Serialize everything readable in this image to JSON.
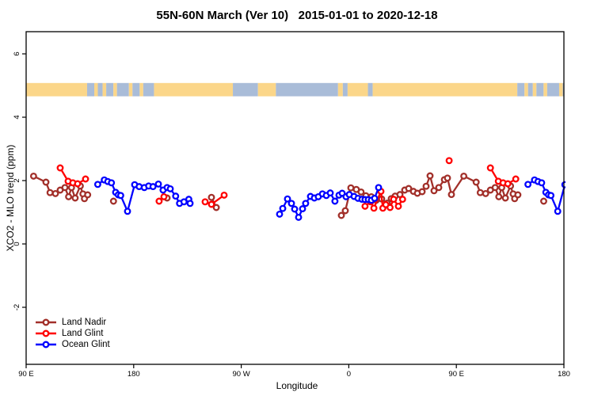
{
  "chart_data": {
    "type": "line",
    "title": "55N-60N March (Ver 10)   2015-01-01 to 2020-12-18",
    "xlabel": "Longitude",
    "ylabel": "XCO2 - MLO trend (ppm)",
    "background_color": "#FFFFFF",
    "axis_color": "#000000",
    "x_axis": {
      "range": [
        90,
        540
      ],
      "ticks": [
        90,
        180,
        270,
        360,
        450,
        540
      ],
      "tick_labels": [
        "90 E",
        "180",
        "90 W",
        "0",
        "90 E",
        "180"
      ],
      "note": "longitude axis wraps eastward: 90E,180,90W,0,90E,180"
    },
    "y_axis": {
      "range": [
        -2.8,
        6.7
      ],
      "ticks": [
        -2,
        0,
        2,
        4,
        6
      ],
      "tick_labels": [
        "-2",
        "0",
        "2",
        "4",
        "6"
      ]
    },
    "grid": false,
    "repeat_period_degrees": 360,
    "map_band": {
      "value_top": 5.08,
      "value_bottom": 4.66,
      "land_color": "#FBD689",
      "ocean_color": "#A9BCD8",
      "segments": [
        {
          "from": 90,
          "to": 141,
          "type": "land"
        },
        {
          "from": 141,
          "to": 147,
          "type": "ocean"
        },
        {
          "from": 147,
          "to": 150,
          "type": "land"
        },
        {
          "from": 150,
          "to": 154,
          "type": "ocean"
        },
        {
          "from": 154,
          "to": 157,
          "type": "land"
        },
        {
          "from": 157,
          "to": 163,
          "type": "ocean"
        },
        {
          "from": 163,
          "to": 166,
          "type": "land"
        },
        {
          "from": 166,
          "to": 176,
          "type": "ocean"
        },
        {
          "from": 176,
          "to": 179,
          "type": "land"
        },
        {
          "from": 179,
          "to": 185,
          "type": "ocean"
        },
        {
          "from": 185,
          "to": 188,
          "type": "land"
        },
        {
          "from": 188,
          "to": 197,
          "type": "ocean"
        },
        {
          "from": 197,
          "to": 263,
          "type": "land"
        },
        {
          "from": 263,
          "to": 284,
          "type": "ocean"
        },
        {
          "from": 284,
          "to": 299,
          "type": "land"
        },
        {
          "from": 299,
          "to": 351,
          "type": "ocean"
        },
        {
          "from": 351,
          "to": 355,
          "type": "land"
        },
        {
          "from": 355,
          "to": 359,
          "type": "ocean"
        },
        {
          "from": 359,
          "to": 376,
          "type": "land"
        },
        {
          "from": 376,
          "to": 380,
          "type": "ocean"
        },
        {
          "from": 380,
          "to": 501,
          "type": "land"
        },
        {
          "from": 501,
          "to": 507,
          "type": "ocean"
        },
        {
          "from": 507,
          "to": 510,
          "type": "land"
        },
        {
          "from": 510,
          "to": 514,
          "type": "ocean"
        },
        {
          "from": 514,
          "to": 517,
          "type": "land"
        },
        {
          "from": 517,
          "to": 523,
          "type": "ocean"
        },
        {
          "from": 523,
          "to": 526,
          "type": "land"
        },
        {
          "from": 526,
          "to": 536,
          "type": "ocean"
        },
        {
          "from": 536,
          "to": 539,
          "type": "land"
        },
        {
          "from": 539,
          "to": 540,
          "type": "ocean"
        }
      ]
    },
    "series": [
      {
        "name": "Land Nadir",
        "color": "#A2302A",
        "points": [
          [
            96.2,
            2.14
          ],
          [
            106.6,
            1.95
          ],
          [
            110.0,
            1.62
          ],
          [
            114.5,
            1.59
          ],
          [
            118.5,
            1.7
          ],
          [
            122.5,
            1.78
          ],
          [
            125.5,
            1.49
          ],
          [
            128.0,
            1.78
          ],
          [
            131.0,
            1.45
          ],
          [
            135.3,
            1.83
          ],
          [
            137.5,
            1.58
          ],
          [
            138.8,
            1.43
          ],
          [
            141.5,
            1.55
          ],
          [
            163.1,
            1.35
          ],
          [
            208.0,
            1.45
          ],
          [
            245.1,
            1.47
          ],
          [
            249.1,
            1.15
          ],
          [
            353.8,
            0.9
          ],
          [
            357.1,
            1.05
          ],
          [
            361.7,
            1.77
          ],
          [
            366.3,
            1.72
          ],
          [
            370.3,
            1.64
          ],
          [
            374.3,
            1.52
          ],
          [
            378.9,
            1.49
          ],
          [
            382.9,
            1.38
          ],
          [
            387.5,
            1.42
          ],
          [
            392.2,
            1.29
          ],
          [
            395.5,
            1.43
          ],
          [
            398.8,
            1.51
          ],
          [
            402.8,
            1.56
          ],
          [
            406.8,
            1.7
          ],
          [
            410.1,
            1.75
          ],
          [
            414.1,
            1.66
          ],
          [
            417.4,
            1.6
          ],
          [
            421.4,
            1.65
          ],
          [
            424.7,
            1.82
          ],
          [
            428.0,
            2.15
          ],
          [
            431.3,
            1.68
          ],
          [
            435.3,
            1.78
          ],
          [
            440.0,
            2.03
          ],
          [
            442.6,
            2.08
          ],
          [
            445.9,
            1.56
          ]
        ]
      },
      {
        "name": "Land Glint",
        "color": "#FF0000",
        "points": [
          [
            118.5,
            2.4
          ],
          [
            125.1,
            1.98
          ],
          [
            129.1,
            1.93
          ],
          [
            133.1,
            1.9
          ],
          [
            139.7,
            2.05
          ],
          [
            201.3,
            1.35
          ],
          [
            205.3,
            1.49
          ],
          [
            239.8,
            1.33
          ],
          [
            245.1,
            1.25
          ],
          [
            255.7,
            1.54
          ],
          [
            373.6,
            1.19
          ],
          [
            378.3,
            1.33
          ],
          [
            381.0,
            1.13
          ],
          [
            386.9,
            1.66
          ],
          [
            388.5,
            1.13
          ],
          [
            391.0,
            1.24
          ],
          [
            394.5,
            1.15
          ],
          [
            397.5,
            1.41
          ],
          [
            401.5,
            1.19
          ],
          [
            405.0,
            1.41
          ],
          [
            444.0,
            2.63
          ]
        ]
      },
      {
        "name": "Ocean Glint",
        "color": "#0000FF",
        "points": [
          [
            149.9,
            1.88
          ],
          [
            155.4,
            2.02
          ],
          [
            158.3,
            1.97
          ],
          [
            161.4,
            1.93
          ],
          [
            164.9,
            1.63
          ],
          [
            167.1,
            1.55
          ],
          [
            169.1,
            1.53
          ],
          [
            174.8,
            1.03
          ],
          [
            180.8,
            1.87
          ],
          [
            184.6,
            1.81
          ],
          [
            188.9,
            1.78
          ],
          [
            192.5,
            1.83
          ],
          [
            196.2,
            1.81
          ],
          [
            200.7,
            1.89
          ],
          [
            204.6,
            1.7
          ],
          [
            208.0,
            1.78
          ],
          [
            210.6,
            1.74
          ],
          [
            215.1,
            1.51
          ],
          [
            218.4,
            1.28
          ],
          [
            222.1,
            1.33
          ],
          [
            226.1,
            1.41
          ],
          [
            227.2,
            1.28
          ],
          [
            302.1,
            0.94
          ],
          [
            304.7,
            1.12
          ],
          [
            308.7,
            1.42
          ],
          [
            312.0,
            1.28
          ],
          [
            314.7,
            1.1
          ],
          [
            318.0,
            0.84
          ],
          [
            321.3,
            1.11
          ],
          [
            323.9,
            1.28
          ],
          [
            327.9,
            1.5
          ],
          [
            331.2,
            1.45
          ],
          [
            334.5,
            1.49
          ],
          [
            337.9,
            1.58
          ],
          [
            341.2,
            1.53
          ],
          [
            344.5,
            1.61
          ],
          [
            348.4,
            1.35
          ],
          [
            351.8,
            1.54
          ],
          [
            354.4,
            1.6
          ],
          [
            357.7,
            1.49
          ],
          [
            360.4,
            1.56
          ],
          [
            364.4,
            1.5
          ],
          [
            367.7,
            1.44
          ],
          [
            371.0,
            1.41
          ],
          [
            373.6,
            1.4
          ],
          [
            376.3,
            1.4
          ],
          [
            378.9,
            1.38
          ],
          [
            381.6,
            1.44
          ],
          [
            384.9,
            1.78
          ]
        ]
      }
    ],
    "legend": {
      "position": "bottom-left",
      "items": [
        {
          "label": "Land Nadir",
          "color": "#A2302A"
        },
        {
          "label": "Land Glint",
          "color": "#FF0000"
        },
        {
          "label": "Ocean Glint",
          "color": "#0000FF"
        }
      ]
    }
  }
}
